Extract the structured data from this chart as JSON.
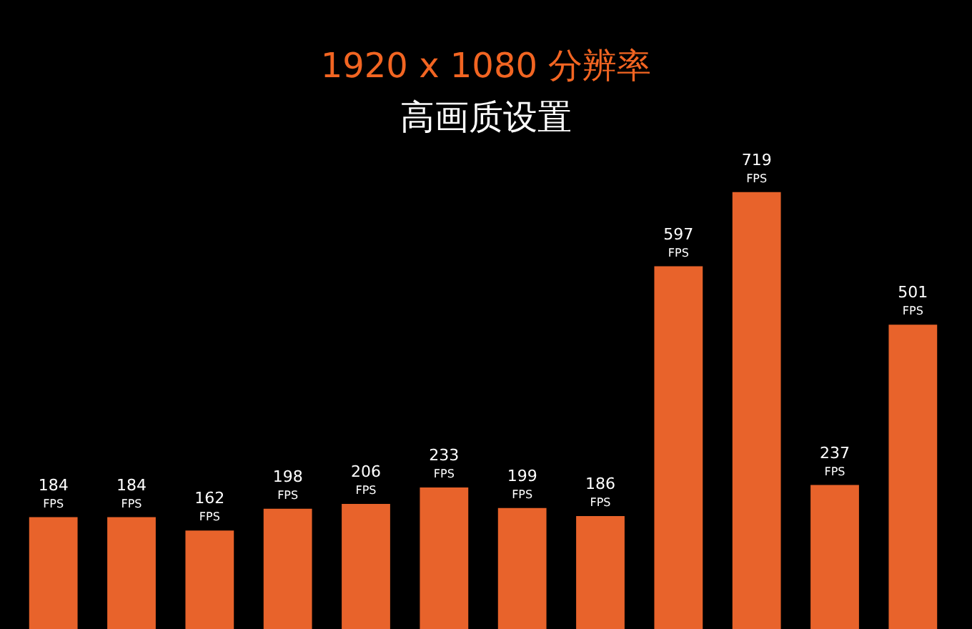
{
  "chart_data": {
    "type": "bar",
    "title": "1920 x 1080 分辨率",
    "subtitle": "高画质设置",
    "categories": [
      null,
      null,
      null,
      null,
      null,
      null,
      null,
      null,
      null,
      null,
      null,
      null
    ],
    "values": [
      184,
      184,
      162,
      198,
      206,
      233,
      199,
      186,
      597,
      719,
      237,
      501
    ],
    "value_labels": [
      "184 FPS",
      "184 FPS",
      "162 FPS",
      "198 FPS",
      "206 FPS",
      "233 FPS",
      "199 FPS",
      "186 FPS",
      "597 FPS",
      "719 FPS",
      "237 FPS",
      "501 FPS"
    ],
    "color": "#e8632b",
    "tick_labels": false,
    "grid": false,
    "legend": false
  }
}
